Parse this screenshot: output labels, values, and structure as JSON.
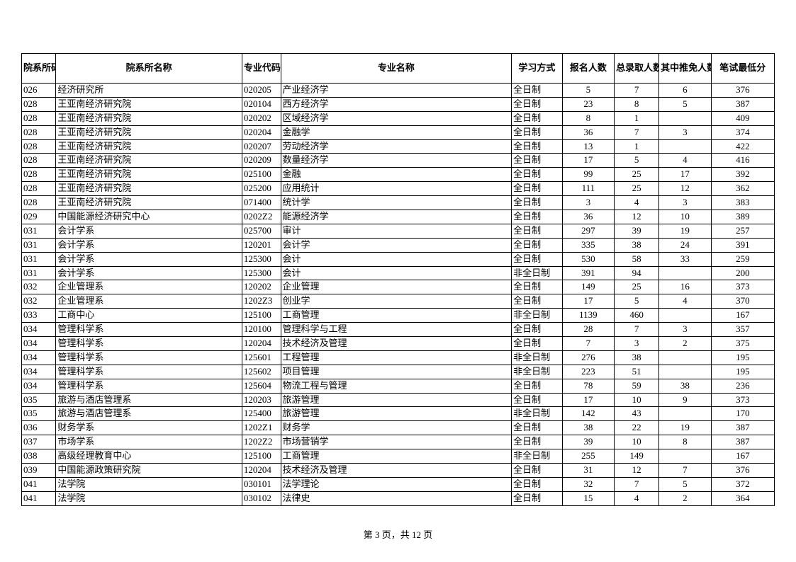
{
  "columns": [
    {
      "key": "dept_code",
      "label": "院系所码",
      "class": "col-dept-code",
      "align": "left"
    },
    {
      "key": "dept_name",
      "label": "院系所名称",
      "class": "col-dept-name",
      "align": "left"
    },
    {
      "key": "major_code",
      "label": "专业代码",
      "class": "col-major-code",
      "align": "left"
    },
    {
      "key": "major_name",
      "label": "专业名称",
      "class": "col-major-name",
      "align": "left"
    },
    {
      "key": "study_mode",
      "label": "学习方式",
      "class": "col-study-mode",
      "align": "left"
    },
    {
      "key": "applicants",
      "label": "报名人数",
      "class": "col-applicants",
      "align": "center"
    },
    {
      "key": "admitted",
      "label": "总录取人数",
      "class": "col-admitted",
      "align": "center"
    },
    {
      "key": "recommend",
      "label": "其中推免人数",
      "class": "col-recommend",
      "align": "center"
    },
    {
      "key": "min_score",
      "label": "笔试最低分",
      "class": "col-min-score",
      "align": "center"
    }
  ],
  "rows": [
    [
      "026",
      "经济研究所",
      "020205",
      "产业经济学",
      "全日制",
      "5",
      "7",
      "6",
      "376"
    ],
    [
      "028",
      "王亚南经济研究院",
      "020104",
      "西方经济学",
      "全日制",
      "23",
      "8",
      "5",
      "387"
    ],
    [
      "028",
      "王亚南经济研究院",
      "020202",
      "区域经济学",
      "全日制",
      "8",
      "1",
      "",
      "409"
    ],
    [
      "028",
      "王亚南经济研究院",
      "020204",
      "金融学",
      "全日制",
      "36",
      "7",
      "3",
      "374"
    ],
    [
      "028",
      "王亚南经济研究院",
      "020207",
      "劳动经济学",
      "全日制",
      "13",
      "1",
      "",
      "422"
    ],
    [
      "028",
      "王亚南经济研究院",
      "020209",
      "数量经济学",
      "全日制",
      "17",
      "5",
      "4",
      "416"
    ],
    [
      "028",
      "王亚南经济研究院",
      "025100",
      "金融",
      "全日制",
      "99",
      "25",
      "17",
      "392"
    ],
    [
      "028",
      "王亚南经济研究院",
      "025200",
      "应用统计",
      "全日制",
      "111",
      "25",
      "12",
      "362"
    ],
    [
      "028",
      "王亚南经济研究院",
      "071400",
      "统计学",
      "全日制",
      "3",
      "4",
      "3",
      "383"
    ],
    [
      "029",
      "中国能源经济研究中心",
      "0202Z2",
      "能源经济学",
      "全日制",
      "36",
      "12",
      "10",
      "389"
    ],
    [
      "031",
      "会计学系",
      "025700",
      "审计",
      "全日制",
      "297",
      "39",
      "19",
      "257"
    ],
    [
      "031",
      "会计学系",
      "120201",
      "会计学",
      "全日制",
      "335",
      "38",
      "24",
      "391"
    ],
    [
      "031",
      "会计学系",
      "125300",
      "会计",
      "全日制",
      "530",
      "58",
      "33",
      "259"
    ],
    [
      "031",
      "会计学系",
      "125300",
      "会计",
      "非全日制",
      "391",
      "94",
      "",
      "200"
    ],
    [
      "032",
      "企业管理系",
      "120202",
      "企业管理",
      "全日制",
      "149",
      "25",
      "16",
      "373"
    ],
    [
      "032",
      "企业管理系",
      "1202Z3",
      "创业学",
      "全日制",
      "17",
      "5",
      "4",
      "370"
    ],
    [
      "033",
      "工商中心",
      "125100",
      "工商管理",
      "非全日制",
      "1139",
      "460",
      "",
      "167"
    ],
    [
      "034",
      "管理科学系",
      "120100",
      "管理科学与工程",
      "全日制",
      "28",
      "7",
      "3",
      "357"
    ],
    [
      "034",
      "管理科学系",
      "120204",
      "技术经济及管理",
      "全日制",
      "7",
      "3",
      "2",
      "375"
    ],
    [
      "034",
      "管理科学系",
      "125601",
      "工程管理",
      "非全日制",
      "276",
      "38",
      "",
      "195"
    ],
    [
      "034",
      "管理科学系",
      "125602",
      "项目管理",
      "非全日制",
      "223",
      "51",
      "",
      "195"
    ],
    [
      "034",
      "管理科学系",
      "125604",
      "物流工程与管理",
      "全日制",
      "78",
      "59",
      "38",
      "236"
    ],
    [
      "035",
      "旅游与酒店管理系",
      "120203",
      "旅游管理",
      "全日制",
      "17",
      "10",
      "9",
      "373"
    ],
    [
      "035",
      "旅游与酒店管理系",
      "125400",
      "旅游管理",
      "非全日制",
      "142",
      "43",
      "",
      "170"
    ],
    [
      "036",
      "财务学系",
      "1202Z1",
      "财务学",
      "全日制",
      "38",
      "22",
      "19",
      "387"
    ],
    [
      "037",
      "市场学系",
      "1202Z2",
      "市场营销学",
      "全日制",
      "39",
      "10",
      "8",
      "387"
    ],
    [
      "038",
      "高级经理教育中心",
      "125100",
      "工商管理",
      "非全日制",
      "255",
      "149",
      "",
      "167"
    ],
    [
      "039",
      "中国能源政策研究院",
      "120204",
      "技术经济及管理",
      "全日制",
      "31",
      "12",
      "7",
      "376"
    ],
    [
      "041",
      "法学院",
      "030101",
      "法学理论",
      "全日制",
      "32",
      "7",
      "5",
      "372"
    ],
    [
      "041",
      "法学院",
      "030102",
      "法律史",
      "全日制",
      "15",
      "4",
      "2",
      "364"
    ]
  ],
  "footer": "第 3 页，共 12 页"
}
